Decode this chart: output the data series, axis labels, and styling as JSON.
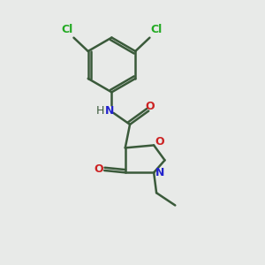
{
  "background_color": "#e8eae8",
  "bond_color": "#3a5a3a",
  "bond_width": 1.8,
  "cl_color": "#22aa22",
  "n_color": "#2222cc",
  "o_color": "#cc2222",
  "figsize": [
    3.0,
    3.0
  ],
  "dpi": 100,
  "xlim": [
    0,
    10
  ],
  "ylim": [
    0,
    10
  ]
}
